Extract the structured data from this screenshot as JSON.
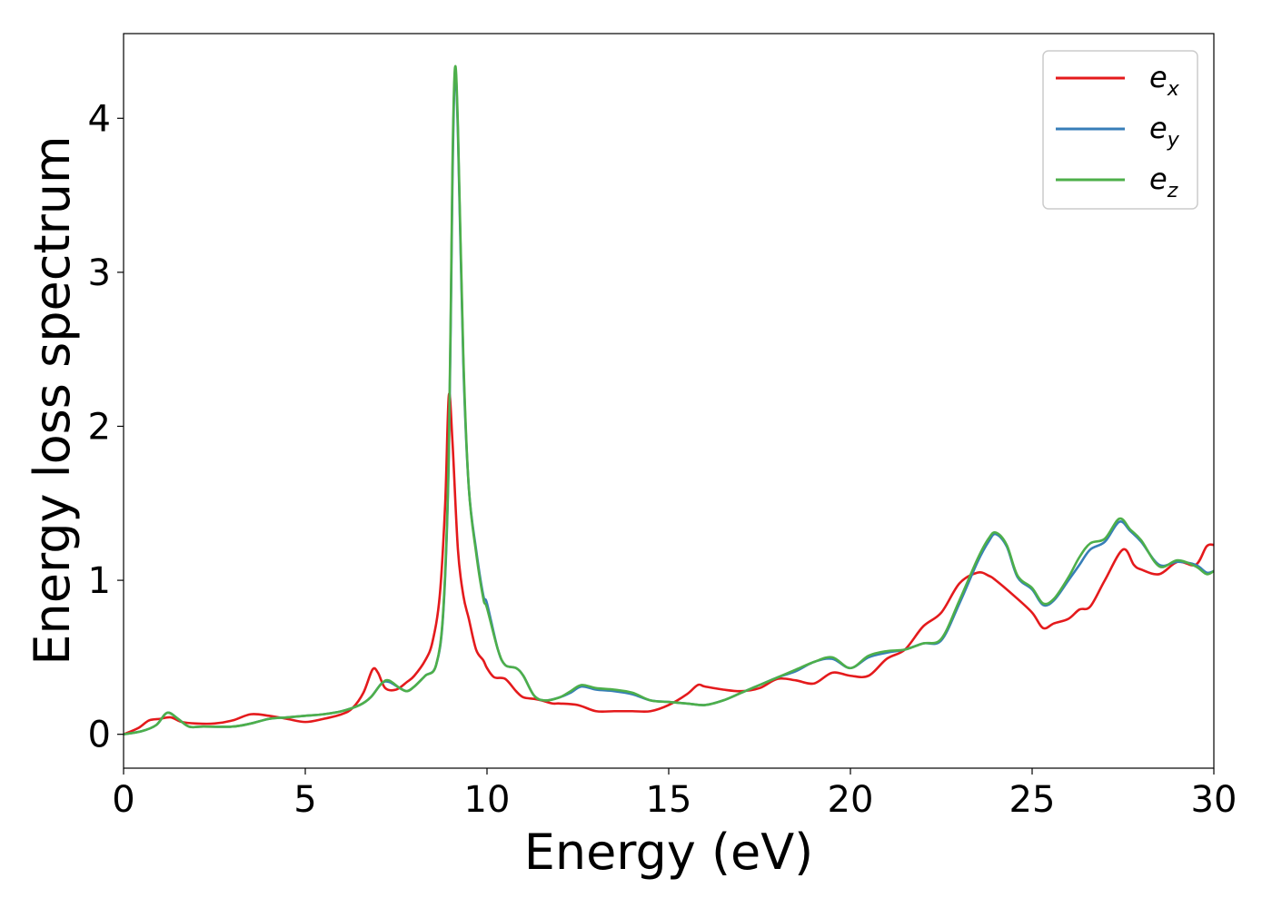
{
  "chart_data": {
    "type": "line",
    "xlabel": "Energy (eV)",
    "ylabel": "Energy loss spectrum",
    "xlim": [
      0,
      30
    ],
    "ylim": [
      -0.22,
      4.55
    ],
    "xticks": [
      0,
      5,
      10,
      15,
      20,
      25,
      30
    ],
    "yticks": [
      0,
      1,
      2,
      3,
      4
    ],
    "grid": false,
    "legend_position": "top-right",
    "series": [
      {
        "name": "e_x",
        "label_base": "e",
        "label_sub": "x",
        "color": "#e41a1c",
        "x": [
          0,
          0.4,
          0.7,
          1.0,
          1.3,
          1.6,
          2.0,
          2.5,
          3.0,
          3.5,
          4.0,
          4.5,
          5.0,
          5.5,
          6.0,
          6.3,
          6.6,
          6.85,
          7.0,
          7.2,
          7.5,
          7.8,
          8.0,
          8.3,
          8.5,
          8.7,
          8.85,
          8.95,
          9.05,
          9.2,
          9.35,
          9.5,
          9.7,
          9.9,
          10.0,
          10.2,
          10.5,
          10.8,
          11.0,
          11.3,
          11.5,
          11.8,
          12.0,
          12.5,
          13.0,
          13.5,
          14.0,
          14.5,
          15.0,
          15.5,
          15.8,
          16.0,
          16.5,
          17.0,
          17.5,
          18.0,
          18.5,
          19.0,
          19.5,
          20.0,
          20.5,
          21.0,
          21.5,
          22.0,
          22.5,
          23.0,
          23.5,
          23.8,
          24.0,
          24.5,
          25.0,
          25.3,
          25.6,
          26.0,
          26.3,
          26.6,
          27.0,
          27.5,
          27.8,
          28.0,
          28.5,
          29.0,
          29.5,
          29.8,
          30.0
        ],
        "y": [
          0,
          0.04,
          0.09,
          0.1,
          0.11,
          0.08,
          0.07,
          0.07,
          0.09,
          0.13,
          0.12,
          0.1,
          0.08,
          0.1,
          0.13,
          0.17,
          0.27,
          0.42,
          0.4,
          0.3,
          0.29,
          0.34,
          0.38,
          0.48,
          0.6,
          0.9,
          1.5,
          2.2,
          1.9,
          1.2,
          0.9,
          0.75,
          0.55,
          0.48,
          0.43,
          0.37,
          0.36,
          0.28,
          0.24,
          0.23,
          0.22,
          0.2,
          0.2,
          0.19,
          0.15,
          0.15,
          0.15,
          0.15,
          0.19,
          0.26,
          0.32,
          0.31,
          0.29,
          0.28,
          0.3,
          0.36,
          0.35,
          0.33,
          0.4,
          0.38,
          0.38,
          0.49,
          0.55,
          0.7,
          0.79,
          0.98,
          1.05,
          1.03,
          1.0,
          0.9,
          0.79,
          0.69,
          0.72,
          0.75,
          0.81,
          0.83,
          1.0,
          1.2,
          1.1,
          1.07,
          1.04,
          1.12,
          1.1,
          1.22,
          1.23
        ]
      },
      {
        "name": "e_y",
        "label_base": "e",
        "label_sub": "y",
        "color": "#377eb8",
        "x": [
          0,
          0.5,
          0.9,
          1.2,
          1.5,
          1.8,
          2.2,
          3.0,
          3.5,
          4.0,
          4.5,
          5.0,
          5.5,
          6.0,
          6.5,
          6.8,
          7.1,
          7.3,
          7.6,
          7.8,
          8.0,
          8.3,
          8.6,
          8.8,
          8.95,
          9.05,
          9.12,
          9.2,
          9.35,
          9.5,
          9.7,
          9.9,
          10.0,
          10.3,
          10.5,
          10.8,
          11.0,
          11.3,
          11.6,
          12.0,
          12.3,
          12.6,
          13.0,
          13.5,
          14.0,
          14.5,
          15.0,
          15.5,
          16.0,
          16.5,
          17.0,
          17.5,
          18.0,
          18.5,
          19.0,
          19.5,
          20.0,
          20.5,
          21.0,
          21.5,
          22.0,
          22.5,
          23.0,
          23.5,
          23.8,
          24.0,
          24.3,
          24.6,
          25.0,
          25.3,
          25.6,
          26.0,
          26.3,
          26.6,
          27.0,
          27.4,
          27.7,
          28.0,
          28.5,
          29.0,
          29.5,
          29.8,
          30.0
        ],
        "y": [
          0,
          0.02,
          0.06,
          0.14,
          0.1,
          0.05,
          0.05,
          0.05,
          0.07,
          0.1,
          0.11,
          0.12,
          0.13,
          0.15,
          0.19,
          0.24,
          0.33,
          0.34,
          0.3,
          0.28,
          0.31,
          0.38,
          0.45,
          0.8,
          1.8,
          3.6,
          4.3,
          3.9,
          2.4,
          1.6,
          1.2,
          0.9,
          0.85,
          0.55,
          0.45,
          0.43,
          0.38,
          0.25,
          0.22,
          0.24,
          0.27,
          0.31,
          0.29,
          0.28,
          0.26,
          0.22,
          0.21,
          0.2,
          0.19,
          0.22,
          0.27,
          0.32,
          0.37,
          0.41,
          0.47,
          0.49,
          0.43,
          0.5,
          0.53,
          0.55,
          0.59,
          0.61,
          0.85,
          1.12,
          1.25,
          1.3,
          1.22,
          1.02,
          0.94,
          0.84,
          0.87,
          1.0,
          1.1,
          1.2,
          1.25,
          1.38,
          1.32,
          1.25,
          1.1,
          1.12,
          1.1,
          1.05,
          1.06
        ]
      },
      {
        "name": "e_z",
        "label_base": "e",
        "label_sub": "z",
        "color": "#4daf4a",
        "x": [
          0,
          0.5,
          0.9,
          1.2,
          1.5,
          1.8,
          2.2,
          3.0,
          3.5,
          4.0,
          4.5,
          5.0,
          5.5,
          6.0,
          6.5,
          6.8,
          7.1,
          7.3,
          7.6,
          7.8,
          8.0,
          8.3,
          8.6,
          8.8,
          8.95,
          9.05,
          9.12,
          9.2,
          9.35,
          9.5,
          9.7,
          9.9,
          10.0,
          10.3,
          10.5,
          10.8,
          11.0,
          11.3,
          11.6,
          12.0,
          12.3,
          12.6,
          13.0,
          13.5,
          14.0,
          14.5,
          15.0,
          15.5,
          16.0,
          16.5,
          17.0,
          17.5,
          18.0,
          18.5,
          19.0,
          19.5,
          20.0,
          20.5,
          21.0,
          21.5,
          22.0,
          22.5,
          23.0,
          23.5,
          23.8,
          24.0,
          24.3,
          24.6,
          25.0,
          25.3,
          25.6,
          26.0,
          26.3,
          26.6,
          27.0,
          27.4,
          27.7,
          28.0,
          28.5,
          29.0,
          29.5,
          29.8,
          30.0
        ],
        "y": [
          0,
          0.02,
          0.06,
          0.14,
          0.1,
          0.05,
          0.05,
          0.05,
          0.07,
          0.1,
          0.11,
          0.12,
          0.13,
          0.15,
          0.19,
          0.24,
          0.33,
          0.35,
          0.3,
          0.28,
          0.31,
          0.38,
          0.45,
          0.82,
          1.85,
          3.7,
          4.33,
          3.95,
          2.45,
          1.6,
          1.18,
          0.88,
          0.82,
          0.55,
          0.45,
          0.43,
          0.38,
          0.25,
          0.22,
          0.24,
          0.28,
          0.32,
          0.3,
          0.29,
          0.27,
          0.22,
          0.21,
          0.2,
          0.19,
          0.22,
          0.27,
          0.32,
          0.37,
          0.42,
          0.47,
          0.5,
          0.43,
          0.51,
          0.54,
          0.55,
          0.59,
          0.62,
          0.87,
          1.14,
          1.27,
          1.31,
          1.23,
          1.03,
          0.95,
          0.85,
          0.88,
          1.02,
          1.15,
          1.24,
          1.27,
          1.4,
          1.33,
          1.26,
          1.09,
          1.13,
          1.09,
          1.04,
          1.06
        ]
      }
    ]
  }
}
